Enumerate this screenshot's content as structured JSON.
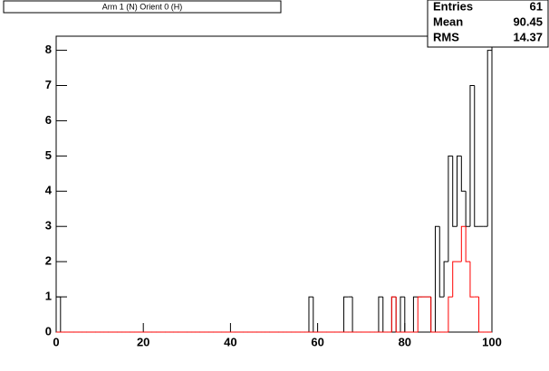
{
  "chart_data": {
    "type": "histogram",
    "title": "Arm 1 (N) Orient 0 (H)",
    "bins": [
      0,
      1,
      2,
      3,
      4,
      5,
      6,
      7,
      8,
      9,
      10,
      11,
      12,
      13,
      14,
      15,
      16,
      17,
      18,
      19,
      20,
      21,
      22,
      23,
      24,
      25,
      26,
      27,
      28,
      29,
      30,
      31,
      32,
      33,
      34,
      35,
      36,
      37,
      38,
      39,
      40,
      41,
      42,
      43,
      44,
      45,
      46,
      47,
      48,
      49,
      50,
      51,
      52,
      53,
      54,
      55,
      56,
      57,
      58,
      59,
      60,
      61,
      62,
      63,
      64,
      65,
      66,
      67,
      68,
      69,
      70,
      71,
      72,
      73,
      74,
      75,
      76,
      77,
      78,
      79,
      80,
      81,
      82,
      83,
      84,
      85,
      86,
      87,
      88,
      89,
      90,
      91,
      92,
      93,
      94,
      95,
      96,
      97,
      98,
      99,
      100
    ],
    "series": [
      {
        "color": "#000000",
        "values": [
          1,
          0,
          0,
          0,
          0,
          0,
          0,
          0,
          0,
          0,
          0,
          0,
          0,
          0,
          0,
          0,
          0,
          0,
          0,
          0,
          0,
          0,
          0,
          0,
          0,
          0,
          0,
          0,
          0,
          0,
          0,
          0,
          0,
          0,
          0,
          0,
          0,
          0,
          0,
          0,
          0,
          0,
          0,
          0,
          0,
          0,
          0,
          0,
          0,
          0,
          0,
          0,
          0,
          0,
          0,
          0,
          0,
          0,
          1,
          0,
          0,
          0,
          0,
          0,
          0,
          0,
          1,
          1,
          0,
          0,
          0,
          0,
          0,
          0,
          1,
          0,
          0,
          1,
          0,
          1,
          0,
          0,
          1,
          1,
          1,
          1,
          0,
          3,
          1,
          2,
          5,
          3,
          5,
          4,
          3,
          7,
          3,
          3,
          3,
          8
        ]
      },
      {
        "color": "#ff0000",
        "values": [
          0,
          0,
          0,
          0,
          0,
          0,
          0,
          0,
          0,
          0,
          0,
          0,
          0,
          0,
          0,
          0,
          0,
          0,
          0,
          0,
          0,
          0,
          0,
          0,
          0,
          0,
          0,
          0,
          0,
          0,
          0,
          0,
          0,
          0,
          0,
          0,
          0,
          0,
          0,
          0,
          0,
          0,
          0,
          0,
          0,
          0,
          0,
          0,
          0,
          0,
          0,
          0,
          0,
          0,
          0,
          0,
          0,
          0,
          0,
          0,
          0,
          0,
          0,
          0,
          0,
          0,
          0,
          0,
          0,
          0,
          0,
          0,
          0,
          0,
          0,
          0,
          0,
          1,
          0,
          0,
          0,
          0,
          0,
          1,
          1,
          1,
          0,
          0,
          0,
          0,
          1,
          2,
          2,
          3,
          2,
          1,
          1,
          0,
          0,
          0
        ]
      }
    ],
    "xlim": [
      0,
      100
    ],
    "xticks": [
      0,
      20,
      40,
      60,
      80,
      100
    ],
    "ylim": [
      0,
      8.4
    ],
    "yticks": [
      0,
      1,
      2,
      3,
      4,
      5,
      6,
      7,
      8
    ],
    "stats": [
      {
        "label": "Entries",
        "value": 61
      },
      {
        "label": "Mean",
        "value": 90.45
      },
      {
        "label": "RMS",
        "value": 14.37
      }
    ]
  }
}
